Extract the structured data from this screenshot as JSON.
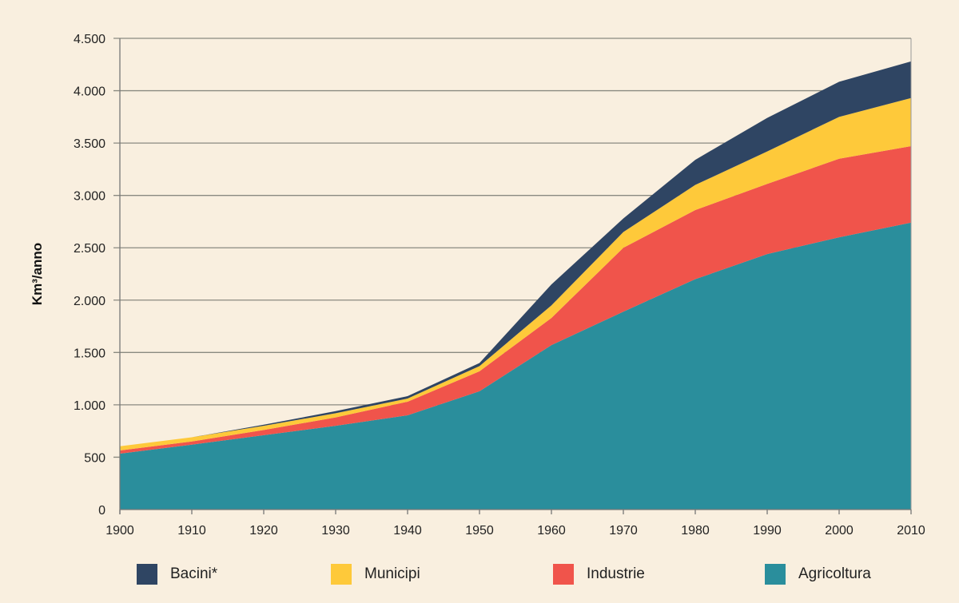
{
  "chart_data": {
    "type": "area",
    "stacked": true,
    "title": "",
    "xlabel": "",
    "ylabel": "Km³/anno",
    "x": [
      1900,
      1910,
      1920,
      1930,
      1940,
      1950,
      1960,
      1970,
      1980,
      1990,
      2000,
      2010
    ],
    "xticks": [
      "1900",
      "1910",
      "1920",
      "1930",
      "1940",
      "1950",
      "1960",
      "1970",
      "1980",
      "1990",
      "2000",
      "2010"
    ],
    "ylim": [
      0,
      4500
    ],
    "yticks": [
      {
        "value": 0,
        "label": "0"
      },
      {
        "value": 500,
        "label": "500"
      },
      {
        "value": 1000,
        "label": "1.000"
      },
      {
        "value": 1500,
        "label": "1.500"
      },
      {
        "value": 2000,
        "label": "2.000"
      },
      {
        "value": 2500,
        "label": "2.500"
      },
      {
        "value": 3000,
        "label": "3.000"
      },
      {
        "value": 3500,
        "label": "3.500"
      },
      {
        "value": 4000,
        "label": "4.000"
      },
      {
        "value": 4500,
        "label": "4.500"
      }
    ],
    "grid": true,
    "legend_position": "bottom",
    "series": [
      {
        "name": "Agricoltura",
        "color": "#2a8e9c",
        "values": [
          534,
          620,
          710,
          800,
          900,
          1130,
          1570,
          1890,
          2200,
          2440,
          2600,
          2740
        ]
      },
      {
        "name": "Industrie",
        "color": "#f0544b",
        "values": [
          30,
          30,
          50,
          80,
          130,
          190,
          260,
          610,
          660,
          670,
          750,
          730
        ]
      },
      {
        "name": "Municipi",
        "color": "#fec93a",
        "values": [
          40,
          40,
          40,
          40,
          30,
          50,
          120,
          150,
          240,
          310,
          400,
          460
        ]
      },
      {
        "name": "Bacini*",
        "color": "#2f4563",
        "values": [
          0,
          0,
          10,
          20,
          23,
          30,
          200,
          130,
          240,
          320,
          335,
          350
        ]
      }
    ],
    "legend_order": [
      "Bacini*",
      "Municipi",
      "Industrie",
      "Agricoltura"
    ]
  }
}
